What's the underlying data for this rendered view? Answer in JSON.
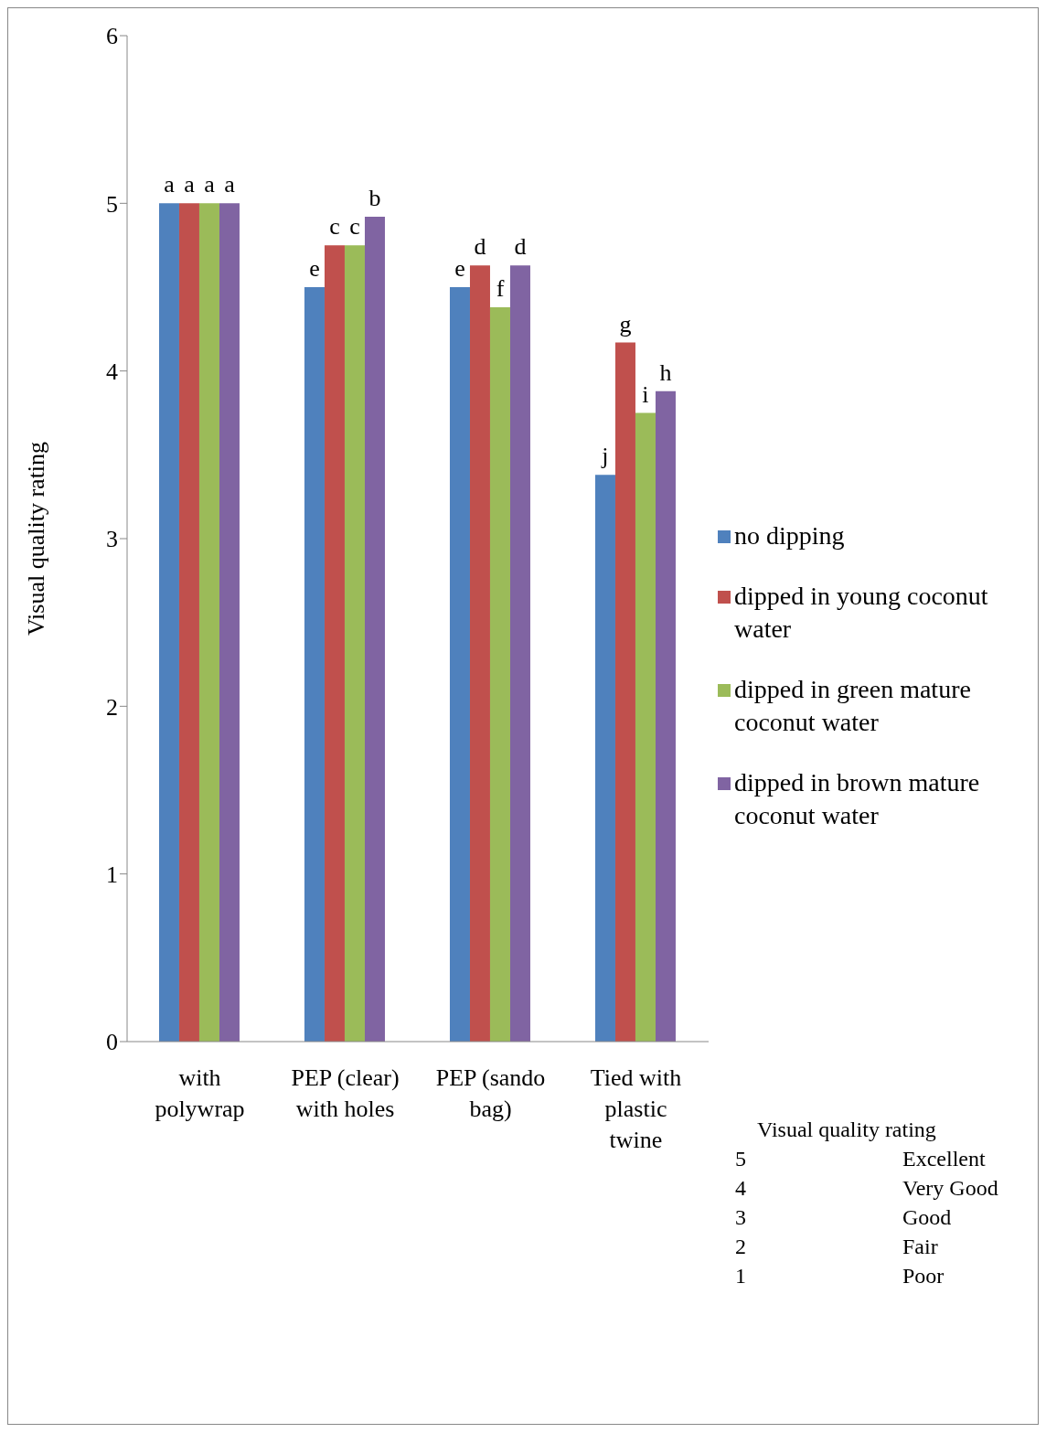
{
  "chart_data": {
    "type": "bar",
    "ylabel": "Visual quality rating",
    "categories": [
      "with polywrap",
      "PEP (clear) with holes",
      "PEP (sando bag)",
      "Tied with plastic twine"
    ],
    "series": [
      {
        "name": "no dipping",
        "color": "#4f81bd",
        "values": [
          5,
          4.5,
          4.5,
          3.38
        ],
        "value_labels": [
          "a",
          "e",
          "e",
          "j"
        ]
      },
      {
        "name": "dipped in young coconut water",
        "color": "#c0504d",
        "values": [
          5,
          4.75,
          4.63,
          4.17
        ],
        "value_labels": [
          "a",
          "c",
          "d",
          "g"
        ]
      },
      {
        "name": "dipped in green mature coconut water",
        "color": "#9bbb59",
        "values": [
          5,
          4.75,
          4.38,
          3.75
        ],
        "value_labels": [
          "a",
          "c",
          "f",
          "i"
        ]
      },
      {
        "name": "dipped in brown mature coconut water",
        "color": "#8064a2",
        "values": [
          5,
          4.92,
          4.63,
          3.88
        ],
        "value_labels": [
          "a",
          "b",
          "d",
          "h"
        ]
      }
    ],
    "ylim": [
      0,
      6
    ],
    "yticks": [
      0,
      1,
      2,
      3,
      4,
      5,
      6
    ],
    "grid": false,
    "legend": "right",
    "annotations": [
      "Visual quality rating",
      "5\tExcellent",
      "4\tVery Good",
      "3\tGood",
      "2\tFair",
      "1\tPoor"
    ]
  }
}
